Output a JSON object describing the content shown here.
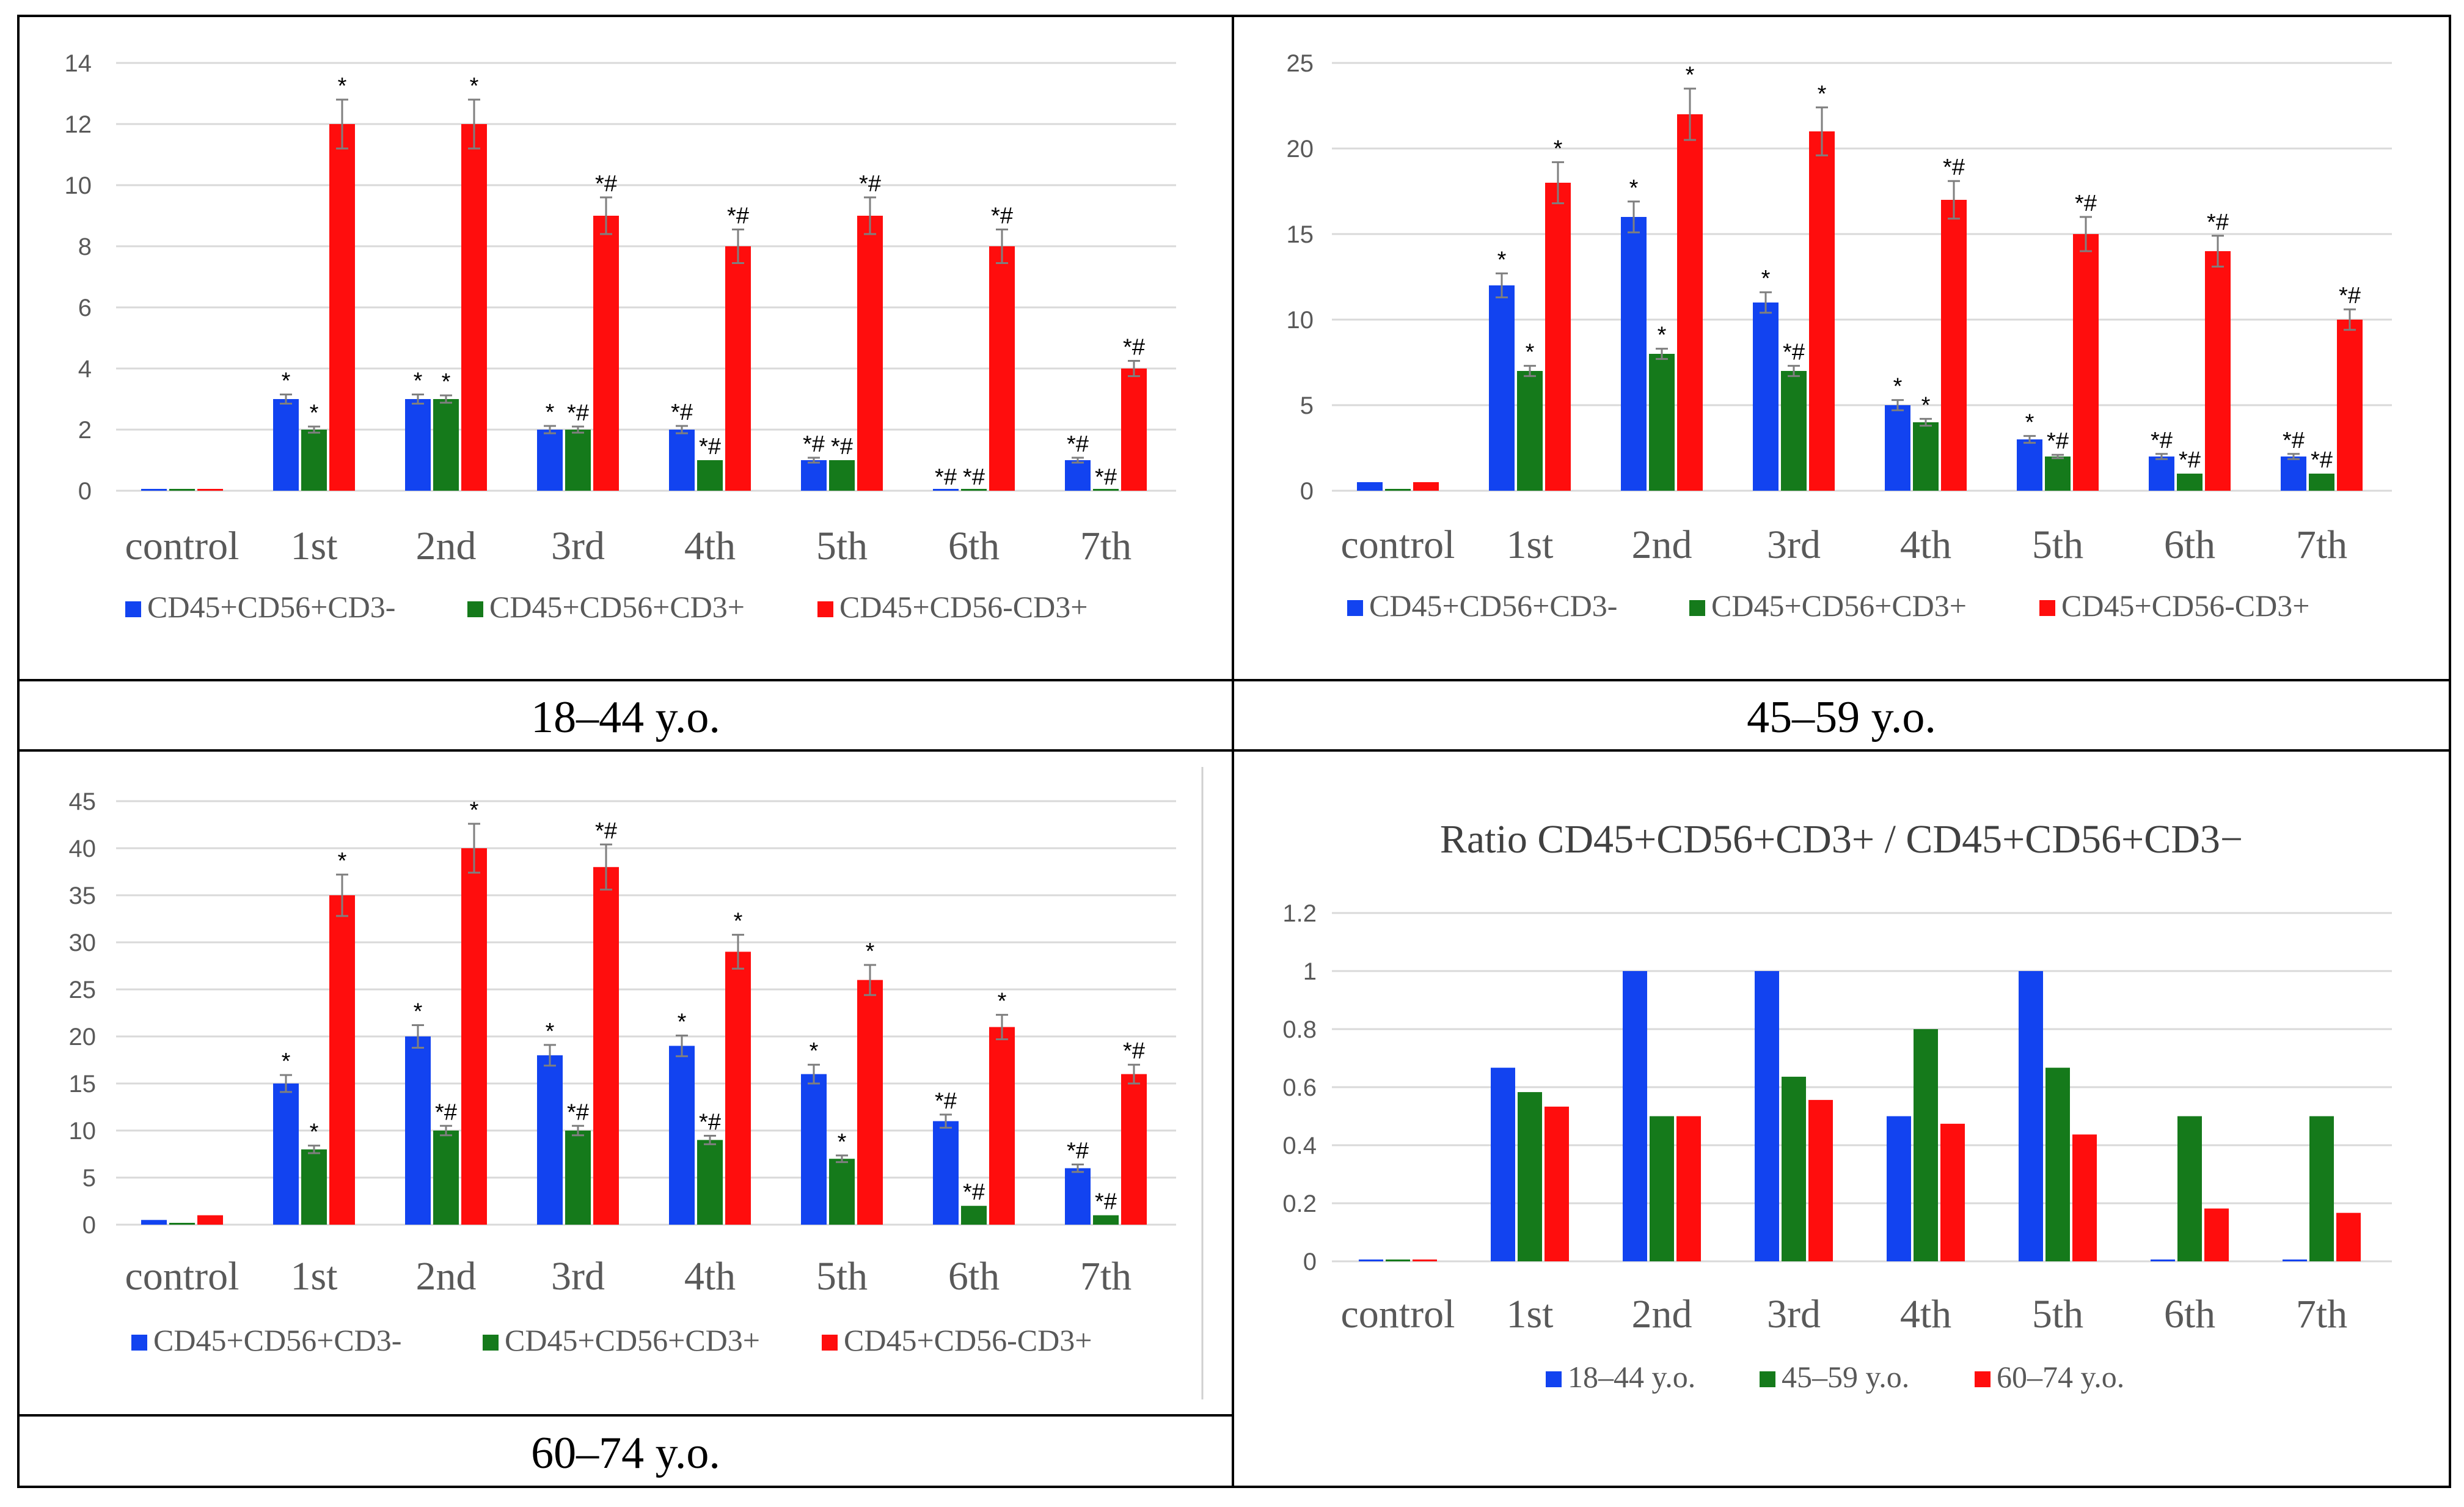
{
  "colors": {
    "blue": "#1243f0",
    "green": "#157a1b",
    "red": "#ff0d0d",
    "grid": "#d9d9d9",
    "axis_text": "#595959",
    "border": "#000000",
    "errbar": "#7f7f7f"
  },
  "chart_data": [
    {
      "id": "panel1",
      "type": "bar",
      "caption": "18–44 y.o.",
      "categories": [
        "control",
        "1st",
        "2nd",
        "3rd",
        "4th",
        "5th",
        "6th",
        "7th"
      ],
      "ylim": [
        0,
        14
      ],
      "yticks": [
        "0",
        "2",
        "4",
        "6",
        "8",
        "10",
        "12",
        "14"
      ],
      "series": [
        {
          "name": "CD45+CD56+CD3-",
          "color": "blue",
          "values": [
            0,
            3,
            3,
            2,
            2,
            1,
            0,
            1
          ],
          "errors": [
            0,
            0.15,
            0.15,
            0.12,
            0.12,
            0.08,
            0,
            0.08
          ],
          "labels": [
            "",
            "*",
            "*",
            "*",
            "*#",
            "*#",
            "*#",
            "*#"
          ]
        },
        {
          "name": "CD45+CD56+CD3+",
          "color": "green",
          "values": [
            0,
            2,
            3,
            2,
            1,
            1,
            0,
            0
          ],
          "errors": [
            0,
            0.1,
            0.12,
            0.1,
            0,
            0,
            0,
            0
          ],
          "labels": [
            "",
            "*",
            "*",
            "*#",
            "*#",
            "*#",
            "*#",
            "*#"
          ]
        },
        {
          "name": "CD45+CD56-CD3+",
          "color": "red",
          "values": [
            0,
            12,
            12,
            9,
            8,
            9,
            8,
            4
          ],
          "errors": [
            0,
            0.8,
            0.8,
            0.6,
            0.55,
            0.6,
            0.55,
            0.25
          ],
          "labels": [
            "",
            "*",
            "*",
            "*#",
            "*#",
            "*#",
            "*#",
            "*#"
          ]
        }
      ]
    },
    {
      "id": "panel2",
      "type": "bar",
      "caption": "45–59 y.o.",
      "categories": [
        "control",
        "1st",
        "2nd",
        "3rd",
        "4th",
        "5th",
        "6th",
        "7th"
      ],
      "ylim": [
        0,
        25
      ],
      "yticks": [
        "0",
        "5",
        "10",
        "15",
        "20",
        "25"
      ],
      "series": [
        {
          "name": "CD45+CD56+CD3-",
          "color": "blue",
          "values": [
            0.5,
            12,
            16,
            11,
            5,
            3,
            2,
            2
          ],
          "errors": [
            0,
            0.7,
            0.9,
            0.6,
            0.3,
            0.2,
            0.15,
            0.15
          ],
          "labels": [
            "",
            "*",
            "*",
            "*",
            "*",
            "*",
            "*#",
            "*#"
          ]
        },
        {
          "name": "CD45+CD56+CD3+",
          "color": "green",
          "values": [
            0,
            7,
            8,
            7,
            4,
            2,
            1,
            1
          ],
          "errors": [
            0,
            0.3,
            0.3,
            0.3,
            0.2,
            0.1,
            0,
            0
          ],
          "labels": [
            "",
            "*",
            "*",
            "*#",
            "*",
            "*#",
            "*#",
            "*#"
          ]
        },
        {
          "name": "CD45+CD56-CD3+",
          "color": "red",
          "values": [
            0.5,
            18,
            22,
            21,
            17,
            15,
            14,
            10
          ],
          "errors": [
            0,
            1.2,
            1.5,
            1.4,
            1.1,
            1.0,
            0.9,
            0.6
          ],
          "labels": [
            "",
            "*",
            "*",
            "*",
            "*#",
            "*#",
            "*#",
            "*#"
          ]
        }
      ]
    },
    {
      "id": "panel3",
      "type": "bar",
      "caption": "60–74 y.o.",
      "categories": [
        "control",
        "1st",
        "2nd",
        "3rd",
        "4th",
        "5th",
        "6th",
        "7th"
      ],
      "ylim": [
        0,
        45
      ],
      "yticks": [
        "0",
        "5",
        "10",
        "15",
        "20",
        "25",
        "30",
        "35",
        "40",
        "45"
      ],
      "series": [
        {
          "name": "CD45+CD56+CD3-",
          "color": "blue",
          "values": [
            0.5,
            15,
            20,
            18,
            19,
            16,
            11,
            6
          ],
          "errors": [
            0,
            0.9,
            1.2,
            1.1,
            1.1,
            1.0,
            0.7,
            0.4
          ],
          "labels": [
            "",
            "*",
            "*",
            "*",
            "*",
            "*",
            "*#",
            "*#"
          ]
        },
        {
          "name": "CD45+CD56+CD3+",
          "color": "green",
          "values": [
            0,
            8,
            10,
            10,
            9,
            7,
            2,
            1
          ],
          "errors": [
            0,
            0.4,
            0.5,
            0.5,
            0.45,
            0.35,
            0,
            0
          ],
          "labels": [
            "",
            "*",
            "*#",
            "*#",
            "*#",
            "*",
            "*#",
            "*#"
          ]
        },
        {
          "name": "CD45+CD56-CD3+",
          "color": "red",
          "values": [
            1,
            35,
            40,
            38,
            29,
            26,
            21,
            16
          ],
          "errors": [
            0,
            2.2,
            2.6,
            2.4,
            1.8,
            1.6,
            1.3,
            1.0
          ],
          "labels": [
            "",
            "*",
            "*",
            "*#",
            "*",
            "*",
            "*",
            "*#"
          ]
        }
      ]
    },
    {
      "id": "panel4",
      "type": "bar",
      "title": "Ratio CD45+CD56+CD3+ / CD45+CD56+CD3−",
      "categories": [
        "control",
        "1st",
        "2nd",
        "3rd",
        "4th",
        "5th",
        "6th",
        "7th"
      ],
      "ylim": [
        0,
        1.2
      ],
      "yticks": [
        "0",
        "0.2",
        "0.4",
        "0.6",
        "0.8",
        "1",
        "1.2"
      ],
      "series": [
        {
          "name": "18–44 y.o.",
          "color": "blue",
          "values": [
            0,
            0.667,
            1,
            1,
            0.5,
            1,
            0,
            0
          ]
        },
        {
          "name": "45–59 y.o.",
          "color": "green",
          "values": [
            0,
            0.583,
            0.5,
            0.636,
            0.8,
            0.667,
            0.5,
            0.5
          ]
        },
        {
          "name": "60–74 y.o.",
          "color": "red",
          "values": [
            0,
            0.533,
            0.5,
            0.556,
            0.474,
            0.437,
            0.182,
            0.167
          ]
        }
      ]
    }
  ]
}
